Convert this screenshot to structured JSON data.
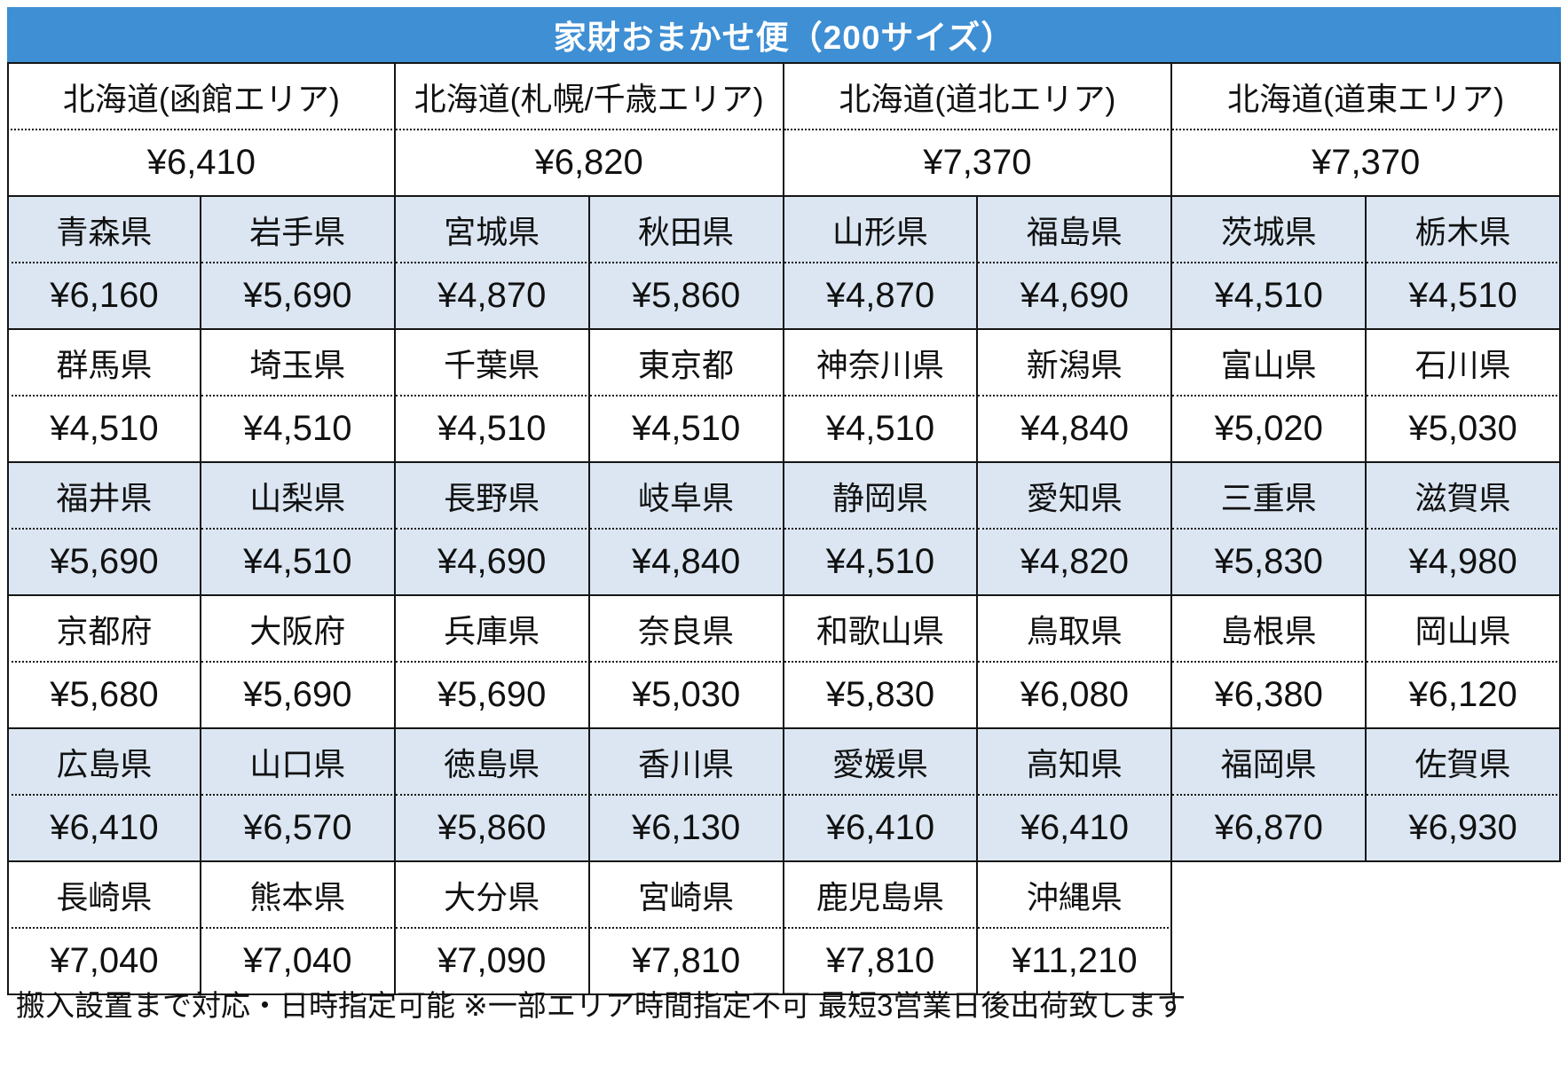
{
  "title": "家財おまかせ便（200サイズ）",
  "footer_note": "搬入設置まで対応・日時指定可能 ※一部エリア時間指定不可 最短3営業日後出荷致します",
  "colors": {
    "header_bg": "#3E8FD4",
    "header_text": "#FFFFFF",
    "shaded_row_bg": "#DBE6F2",
    "border": "#151515",
    "text": "#111111"
  },
  "hokkaido_row": {
    "shaded": false,
    "cells": [
      {
        "area": "北海道(函館エリア)",
        "price": "¥6,410"
      },
      {
        "area": "北海道(札幌/千歳エリア)",
        "price": "¥6,820"
      },
      {
        "area": "北海道(道北エリア)",
        "price": "¥7,370"
      },
      {
        "area": "北海道(道東エリア)",
        "price": "¥7,370"
      }
    ]
  },
  "prefecture_rows": [
    {
      "shaded": true,
      "cells": [
        {
          "name": "青森県",
          "price": "¥6,160"
        },
        {
          "name": "岩手県",
          "price": "¥5,690"
        },
        {
          "name": "宮城県",
          "price": "¥4,870"
        },
        {
          "name": "秋田県",
          "price": "¥5,860"
        },
        {
          "name": "山形県",
          "price": "¥4,870"
        },
        {
          "name": "福島県",
          "price": "¥4,690"
        },
        {
          "name": "茨城県",
          "price": "¥4,510"
        },
        {
          "name": "栃木県",
          "price": "¥4,510"
        }
      ]
    },
    {
      "shaded": false,
      "cells": [
        {
          "name": "群馬県",
          "price": "¥4,510"
        },
        {
          "name": "埼玉県",
          "price": "¥4,510"
        },
        {
          "name": "千葉県",
          "price": "¥4,510"
        },
        {
          "name": "東京都",
          "price": "¥4,510"
        },
        {
          "name": "神奈川県",
          "price": "¥4,510"
        },
        {
          "name": "新潟県",
          "price": "¥4,840"
        },
        {
          "name": "富山県",
          "price": "¥5,020"
        },
        {
          "name": "石川県",
          "price": "¥5,030"
        }
      ]
    },
    {
      "shaded": true,
      "cells": [
        {
          "name": "福井県",
          "price": "¥5,690"
        },
        {
          "name": "山梨県",
          "price": "¥4,510"
        },
        {
          "name": "長野県",
          "price": "¥4,690"
        },
        {
          "name": "岐阜県",
          "price": "¥4,840"
        },
        {
          "name": "静岡県",
          "price": "¥4,510"
        },
        {
          "name": "愛知県",
          "price": "¥4,820"
        },
        {
          "name": "三重県",
          "price": "¥5,830"
        },
        {
          "name": "滋賀県",
          "price": "¥4,980"
        }
      ]
    },
    {
      "shaded": false,
      "cells": [
        {
          "name": "京都府",
          "price": "¥5,680"
        },
        {
          "name": "大阪府",
          "price": "¥5,690"
        },
        {
          "name": "兵庫県",
          "price": "¥5,690"
        },
        {
          "name": "奈良県",
          "price": "¥5,030"
        },
        {
          "name": "和歌山県",
          "price": "¥5,830"
        },
        {
          "name": "鳥取県",
          "price": "¥6,080"
        },
        {
          "name": "島根県",
          "price": "¥6,380"
        },
        {
          "name": "岡山県",
          "price": "¥6,120"
        }
      ]
    },
    {
      "shaded": true,
      "cells": [
        {
          "name": "広島県",
          "price": "¥6,410"
        },
        {
          "name": "山口県",
          "price": "¥6,570"
        },
        {
          "name": "徳島県",
          "price": "¥5,860"
        },
        {
          "name": "香川県",
          "price": "¥6,130"
        },
        {
          "name": "愛媛県",
          "price": "¥6,410"
        },
        {
          "name": "高知県",
          "price": "¥6,410"
        },
        {
          "name": "福岡県",
          "price": "¥6,870"
        },
        {
          "name": "佐賀県",
          "price": "¥6,930"
        }
      ]
    },
    {
      "shaded": false,
      "cells": [
        {
          "name": "長崎県",
          "price": "¥7,040"
        },
        {
          "name": "熊本県",
          "price": "¥7,040"
        },
        {
          "name": "大分県",
          "price": "¥7,090"
        },
        {
          "name": "宮崎県",
          "price": "¥7,810"
        },
        {
          "name": "鹿児島県",
          "price": "¥7,810"
        },
        {
          "name": "沖縄県",
          "price": "¥11,210"
        }
      ]
    }
  ]
}
